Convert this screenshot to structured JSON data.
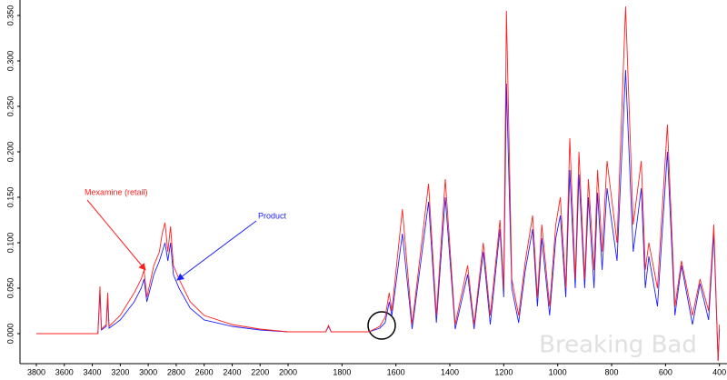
{
  "chart_data": {
    "type": "line",
    "x": [
      3800,
      3400,
      3360,
      3345,
      3335,
      3300,
      3290,
      3280,
      3200,
      3100,
      3050,
      3030,
      3010,
      2960,
      2920,
      2900,
      2880,
      2860,
      2840,
      2820,
      2780,
      2700,
      2600,
      2400,
      2200,
      2000,
      1860,
      1850,
      1840,
      1700,
      1660,
      1640,
      1625,
      1615,
      1576,
      1540,
      1479,
      1450,
      1417,
      1380,
      1334,
      1310,
      1276,
      1250,
      1214,
      1200,
      1190,
      1170,
      1145,
      1120,
      1093,
      1075,
      1059,
      1030,
      1007,
      990,
      970,
      955,
      935,
      921,
      900,
      886,
      865,
      852,
      835,
      817,
      780,
      748,
      720,
      690,
      675,
      662,
      630,
      593,
      565,
      541,
      500,
      472,
      440,
      421,
      405,
      400
    ],
    "series": [
      {
        "name": "Mexamine (retail)",
        "color": "#ff2020",
        "values": [
          0,
          0,
          0,
          0.052,
          0.005,
          0.01,
          0.045,
          0.008,
          0.02,
          0.045,
          0.06,
          0.07,
          0.04,
          0.075,
          0.09,
          0.11,
          0.122,
          0.09,
          0.118,
          0.075,
          0.06,
          0.035,
          0.02,
          0.01,
          0.005,
          0.002,
          0.002,
          0.009,
          0.002,
          0.002,
          0.008,
          0.018,
          0.045,
          0.025,
          0.137,
          0.01,
          0.165,
          0.02,
          0.17,
          0.01,
          0.075,
          0.01,
          0.1,
          0.02,
          0.125,
          0.05,
          0.355,
          0.06,
          0.02,
          0.08,
          0.13,
          0.04,
          0.12,
          0.03,
          0.12,
          0.15,
          0.05,
          0.215,
          0.06,
          0.2,
          0.06,
          0.17,
          0.07,
          0.18,
          0.09,
          0.19,
          0.1,
          0.36,
          0.12,
          0.19,
          0.07,
          0.1,
          0.05,
          0.23,
          0.03,
          0.08,
          0.02,
          0.06,
          0.025,
          0.12,
          -0.03,
          0.01
        ]
      },
      {
        "name": "Product",
        "color": "#2020ff",
        "values": [
          0,
          0,
          0,
          0.045,
          0.004,
          0.008,
          0.04,
          0.006,
          0.015,
          0.035,
          0.05,
          0.06,
          0.035,
          0.065,
          0.08,
          0.09,
          0.1,
          0.08,
          0.1,
          0.065,
          0.05,
          0.028,
          0.015,
          0.008,
          0.004,
          0.002,
          0.002,
          0.008,
          0.002,
          0.002,
          0.006,
          0.012,
          0.035,
          0.02,
          0.11,
          0.005,
          0.145,
          0.012,
          0.15,
          0.005,
          0.065,
          0.005,
          0.09,
          0.01,
          0.115,
          0.04,
          0.275,
          0.05,
          0.012,
          0.07,
          0.115,
          0.03,
          0.105,
          0.02,
          0.105,
          0.13,
          0.04,
          0.18,
          0.05,
          0.175,
          0.05,
          0.15,
          0.05,
          0.155,
          0.07,
          0.16,
          0.08,
          0.29,
          0.09,
          0.16,
          0.05,
          0.085,
          0.03,
          0.2,
          0.02,
          0.075,
          0.01,
          0.055,
          0.015,
          0.11,
          -0.03,
          0.005
        ]
      }
    ],
    "xlim": [
      3917,
      372
    ],
    "xbreak": 2000,
    "xticks": [
      3800,
      3600,
      3400,
      3200,
      3000,
      2800,
      2600,
      2400,
      2200,
      2000,
      1800,
      1600,
      1400,
      1200,
      1000,
      800,
      600,
      400
    ],
    "ylim": [
      -0.033,
      0.367
    ],
    "yticks": [
      {
        "value": 0,
        "label": "0.000"
      },
      {
        "value": 0.05,
        "label": "0.050"
      },
      {
        "value": 0.1,
        "label": "0.100"
      },
      {
        "value": 0.15,
        "label": "0.150"
      },
      {
        "value": 0.2,
        "label": "0.200"
      },
      {
        "value": 0.25,
        "label": "0.250"
      },
      {
        "value": 0.3,
        "label": "0.300"
      },
      {
        "value": 0.35,
        "label": "0.350"
      }
    ],
    "annotations": [
      "Mexamine (retail)",
      "Product"
    ],
    "watermark": "Breaking Bad"
  }
}
